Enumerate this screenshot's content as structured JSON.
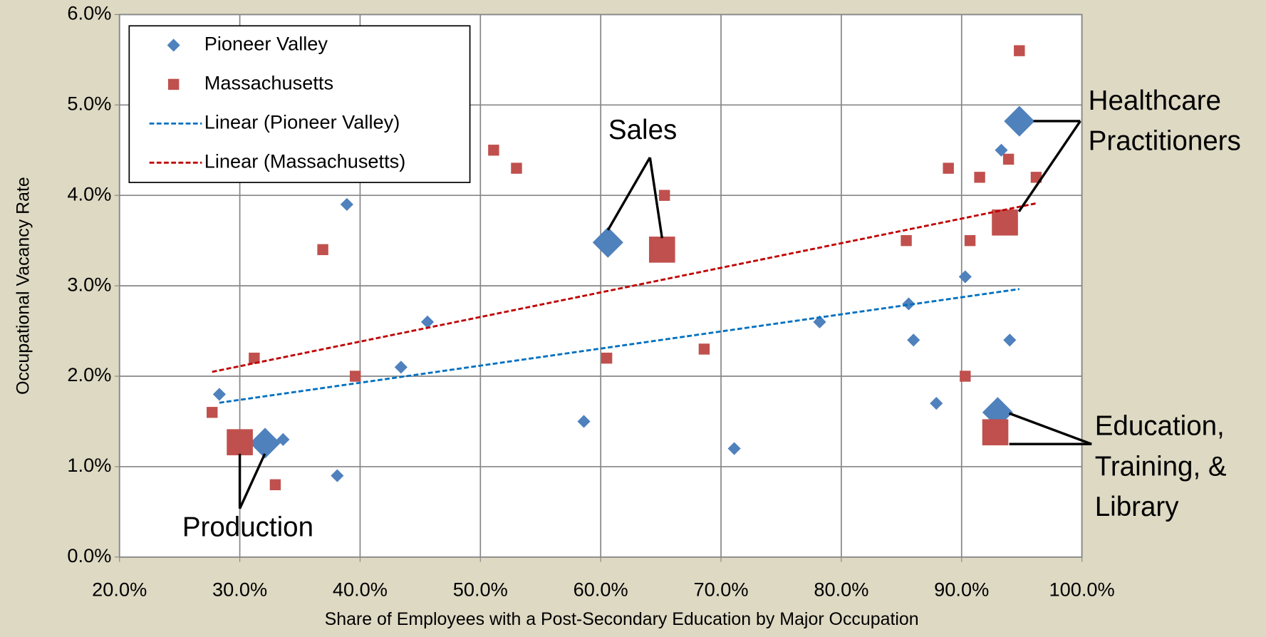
{
  "chart_data": {
    "type": "scatter",
    "x_label": "Share of Employees with a Post-Secondary Education by Major Occupation",
    "y_label": "Occupational Vacancy Rate",
    "xlim": [
      20,
      100
    ],
    "xticks": [
      {
        "value": 20,
        "label": "20.0%"
      },
      {
        "value": 30,
        "label": "30.0%"
      },
      {
        "value": 40,
        "label": "40.0%"
      },
      {
        "value": 50,
        "label": "50.0%"
      },
      {
        "value": 60,
        "label": "60.0%"
      },
      {
        "value": 70,
        "label": "70.0%"
      },
      {
        "value": 80,
        "label": "80.0%"
      },
      {
        "value": 90,
        "label": "90.0%"
      },
      {
        "value": 100,
        "label": "100.0%"
      }
    ],
    "ylim": [
      0,
      6
    ],
    "yticks": [
      {
        "value": 0,
        "label": "0.0%"
      },
      {
        "value": 1,
        "label": "1.0%"
      },
      {
        "value": 2,
        "label": "2.0%"
      },
      {
        "value": 3,
        "label": "3.0%"
      },
      {
        "value": 4,
        "label": "4.0%"
      },
      {
        "value": 5,
        "label": "5.0%"
      },
      {
        "value": 6,
        "label": "6.0%"
      }
    ],
    "grid": true,
    "legend": "top-left",
    "series": [
      {
        "name": "Pioneer Valley",
        "color": "#4F81BD",
        "marker": "diamond",
        "x": [
          28.3,
          33.6,
          38.1,
          38.9,
          43.4,
          45.6,
          58.6,
          71.1,
          78.2,
          85.6,
          86.0,
          87.9,
          90.3,
          93.3,
          94.0,
          32.1,
          60.6,
          94.8,
          93.0
        ],
        "values": [
          1.8,
          1.3,
          0.9,
          3.9,
          2.1,
          2.6,
          1.5,
          1.2,
          2.6,
          2.8,
          2.4,
          1.7,
          3.1,
          4.5,
          2.4,
          1.26,
          3.48,
          4.82,
          1.6
        ],
        "highlight": [
          false,
          false,
          false,
          false,
          false,
          false,
          false,
          false,
          false,
          false,
          false,
          false,
          false,
          false,
          false,
          true,
          true,
          true,
          true
        ],
        "trendline": {
          "name": "Linear (Pioneer Valley)",
          "color": "#0070C0"
        }
      },
      {
        "name": "Massachusetts",
        "color": "#C0504D",
        "marker": "square",
        "x": [
          27.7,
          31.2,
          32.95,
          36.9,
          39.6,
          51.1,
          53.0,
          60.5,
          65.3,
          68.6,
          85.4,
          88.9,
          90.3,
          90.7,
          91.5,
          93.9,
          94.8,
          96.2,
          30.0,
          65.1,
          93.6,
          92.8
        ],
        "values": [
          1.6,
          2.2,
          0.8,
          3.4,
          2.0,
          4.5,
          4.3,
          2.2,
          4.0,
          2.3,
          3.5,
          4.3,
          2.0,
          3.5,
          4.2,
          4.4,
          5.6,
          4.2,
          1.27,
          3.4,
          3.7,
          1.38
        ],
        "highlight": [
          false,
          false,
          false,
          false,
          false,
          false,
          false,
          false,
          false,
          false,
          false,
          false,
          false,
          false,
          false,
          false,
          false,
          false,
          true,
          true,
          true,
          true
        ],
        "trendline": {
          "name": "Linear (Massachusetts)",
          "color": "#C00000"
        }
      }
    ],
    "annotations": [
      {
        "lines": [
          "Sales"
        ]
      },
      {
        "lines": [
          "Healthcare",
          "Practitioners"
        ]
      },
      {
        "lines": [
          "Education,",
          "Training, &",
          "Library"
        ]
      },
      {
        "lines": [
          "Production"
        ]
      }
    ]
  }
}
